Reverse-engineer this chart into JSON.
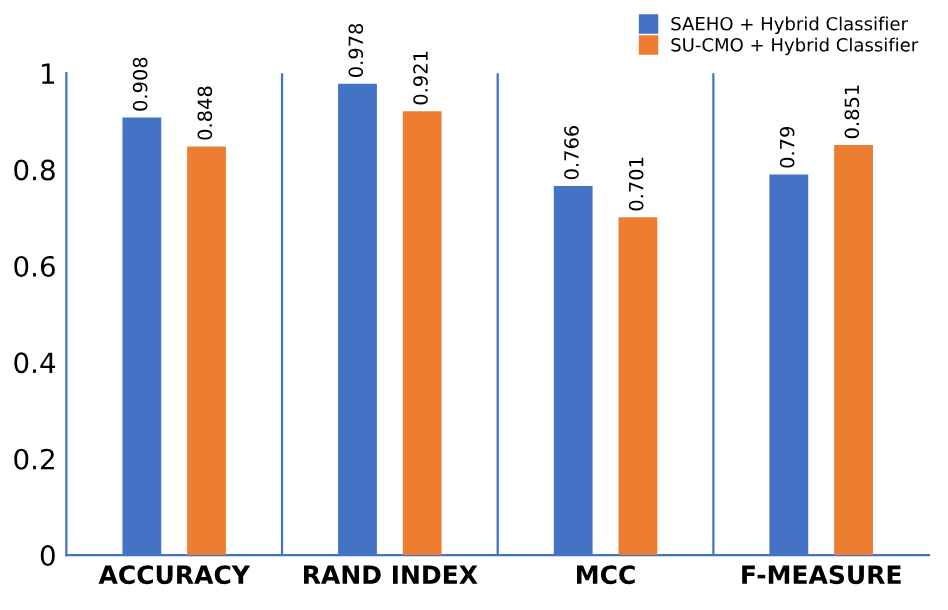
{
  "chart_data": {
    "type": "bar",
    "categories": [
      "ACCURACY",
      "RAND INDEX",
      "MCC",
      "F-MEASURE"
    ],
    "series": [
      {
        "name": "SAEHO + Hybrid Classifier",
        "color": "#4472c4",
        "values": [
          0.908,
          0.978,
          0.766,
          0.79
        ]
      },
      {
        "name": "SU-CMO + Hybrid Classifier",
        "color": "#ed7d31",
        "values": [
          0.848,
          0.921,
          0.701,
          0.851
        ]
      }
    ],
    "ylim": [
      0,
      1
    ],
    "yticks": [
      0,
      0.2,
      0.4,
      0.6,
      0.8,
      1
    ],
    "grid": "x",
    "legend": "top right",
    "data_labels": true
  }
}
